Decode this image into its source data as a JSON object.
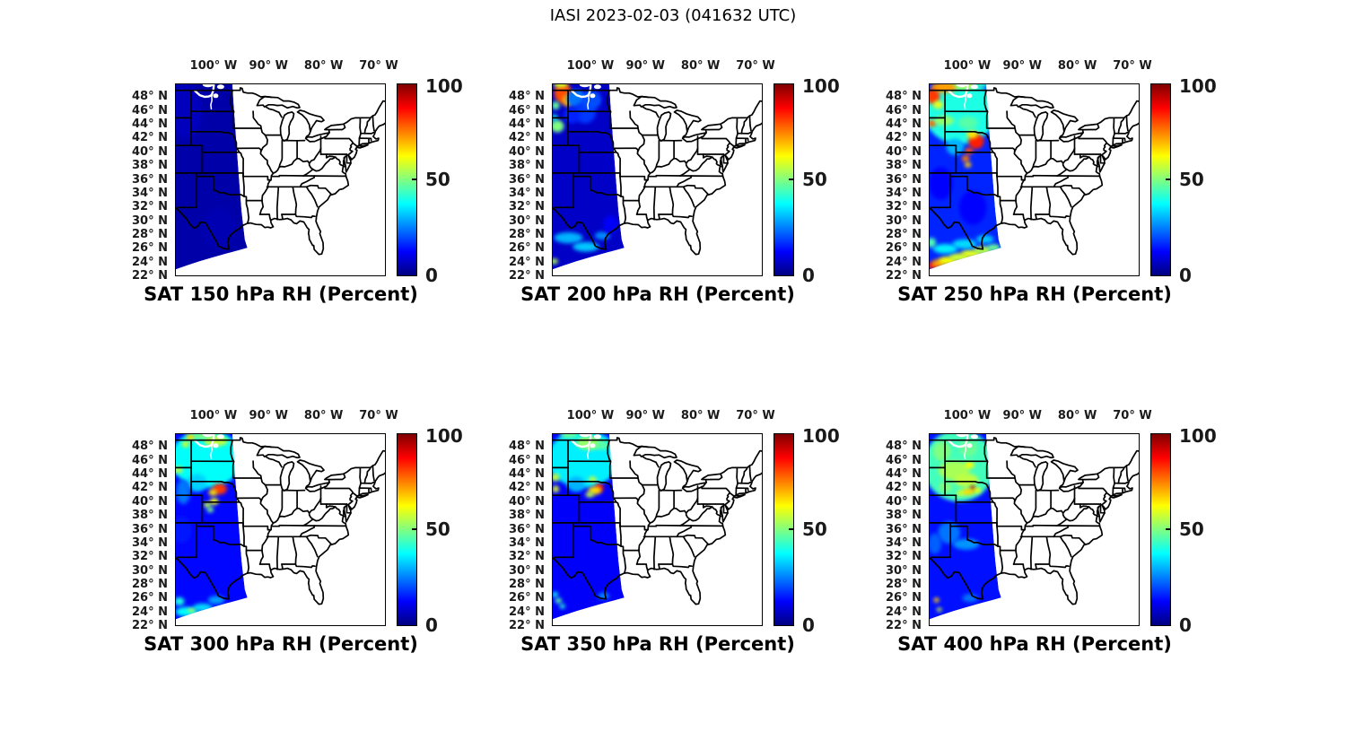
{
  "figure_title": "IASI 2023-02-03 (041632 UTC)",
  "axis": {
    "x_tick_labels": [
      "100° W",
      "90° W",
      "80° W",
      "70° W"
    ],
    "y_tick_labels": [
      "48° N",
      "46° N",
      "44° N",
      "42° N",
      "40° N",
      "38° N",
      "36° N",
      "34° N",
      "32° N",
      "30° N",
      "28° N",
      "26° N",
      "24° N",
      "22° N"
    ]
  },
  "colorbar": {
    "labels": [
      "100",
      "50",
      "0"
    ],
    "min": 0,
    "max": 100,
    "colormap": "jet",
    "gradient_stops": [
      "#000080",
      "#0000FF",
      "#00FFFF",
      "#80FF80",
      "#FFFF00",
      "#FF0000",
      "#800000"
    ]
  },
  "chart_data": {
    "type": "heatmap",
    "title": "IASI 2023-02-03 (041632 UTC)",
    "instrument": "IASI",
    "date": "2023-02-03",
    "time_utc": "041632",
    "variable": "Relative Humidity",
    "units": "Percent",
    "colormap": "jet",
    "colorbar_range": [
      0,
      100
    ],
    "colorbar_ticks": [
      0,
      50,
      100
    ],
    "map_extent": {
      "lon_west_deg_w": 107,
      "lon_east_deg_w": 68.7,
      "lat_south_deg_n": 22,
      "lat_north_deg_n": 50
    },
    "x_ticks_deg_w": [
      100,
      90,
      80,
      70
    ],
    "y_ticks_deg_n": [
      48,
      46,
      44,
      42,
      40,
      38,
      36,
      34,
      32,
      30,
      28,
      26,
      24,
      22
    ],
    "blob_format": [
      "lon_deg_w",
      "lat_deg_n",
      "rx_deg",
      "ry_deg",
      "rh_percent"
    ],
    "panels": [
      {
        "level_hpa": 150,
        "title": "SAT 150 hPa RH (Percent)",
        "base_rh": 4,
        "field_blobs": [
          [
            105,
            46,
            3,
            4,
            6
          ],
          [
            99,
            29,
            3,
            3,
            5
          ]
        ]
      },
      {
        "level_hpa": 200,
        "title": "SAT 200 hPa RH (Percent)",
        "base_rh": 7,
        "field_blobs": [
          [
            105,
            48.6,
            1.6,
            1.5,
            80
          ],
          [
            104.1,
            47.5,
            1.0,
            0.9,
            70
          ],
          [
            105.4,
            49.9,
            1.3,
            0.5,
            58
          ],
          [
            106.3,
            46.8,
            0.7,
            0.6,
            48
          ],
          [
            106,
            43.8,
            1.2,
            0.9,
            50
          ],
          [
            106.5,
            45,
            0.5,
            0.5,
            40
          ],
          [
            102.5,
            47.8,
            1.8,
            1.3,
            24
          ],
          [
            101,
            45.8,
            2,
            1.6,
            18
          ],
          [
            103.4,
            45.4,
            1.5,
            1.2,
            16
          ],
          [
            99.8,
            47.6,
            1.8,
            1.4,
            20
          ],
          [
            104,
            27.6,
            2.6,
            0.8,
            30
          ],
          [
            100.8,
            26.3,
            2.4,
            0.7,
            32
          ],
          [
            97.8,
            27.9,
            1.4,
            0.6,
            26
          ],
          [
            106.6,
            24.2,
            0.7,
            0.4,
            55
          ],
          [
            96.3,
            29.5,
            1.3,
            1.3,
            12
          ]
        ]
      },
      {
        "level_hpa": 250,
        "title": "SAT 250 hPa RH (Percent)",
        "base_rh": 16,
        "field_blobs": [
          [
            101.3,
            45.8,
            6.5,
            4.6,
            40
          ],
          [
            104.2,
            49.4,
            2.4,
            0.8,
            72
          ],
          [
            106.2,
            48.1,
            1.2,
            1.1,
            82
          ],
          [
            105.3,
            46.9,
            0.9,
            0.6,
            60
          ],
          [
            100.3,
            49.7,
            2.0,
            0.6,
            55
          ],
          [
            97.6,
            49.9,
            1.4,
            0.5,
            42
          ],
          [
            106.4,
            44.2,
            0.8,
            0.5,
            78
          ],
          [
            104.2,
            44.6,
            1.8,
            0.7,
            52
          ],
          [
            99.9,
            44.3,
            1.8,
            0.9,
            46
          ],
          [
            98.4,
            41.6,
            1.4,
            1.1,
            85
          ],
          [
            99.1,
            42.6,
            1.0,
            0.6,
            65
          ],
          [
            99.7,
            40.2,
            0.8,
            0.5,
            80
          ],
          [
            100.3,
            39.1,
            0.7,
            0.5,
            76
          ],
          [
            99.9,
            38.2,
            0.6,
            0.4,
            68
          ],
          [
            102.2,
            40.8,
            1.6,
            1.2,
            30
          ],
          [
            104.8,
            35.5,
            2.2,
            2.4,
            13
          ],
          [
            99,
            32,
            2.5,
            2.5,
            13
          ],
          [
            106.3,
            23.6,
            1.0,
            0.5,
            85
          ],
          [
            105.2,
            23.9,
            1.2,
            0.6,
            72
          ],
          [
            103.6,
            24.3,
            1.6,
            0.6,
            62
          ],
          [
            101.5,
            24.8,
            1.8,
            0.6,
            58
          ],
          [
            99.3,
            25.3,
            1.8,
            0.6,
            60
          ],
          [
            97.2,
            25.8,
            1.6,
            0.6,
            55
          ],
          [
            95.2,
            26.2,
            1.2,
            0.5,
            48
          ],
          [
            104,
            26,
            2.2,
            0.7,
            36
          ],
          [
            100.5,
            26.7,
            2.2,
            0.7,
            34
          ],
          [
            96.8,
            27.4,
            1.6,
            0.6,
            32
          ],
          [
            106.5,
            26.9,
            0.8,
            0.7,
            45
          ]
        ]
      },
      {
        "level_hpa": 300,
        "title": "SAT 300 hPa RH (Percent)",
        "base_rh": 13,
        "field_blobs": [
          [
            101.3,
            46.3,
            6.5,
            4.2,
            38
          ],
          [
            99.6,
            48.9,
            2.2,
            0.8,
            56
          ],
          [
            102.2,
            49.6,
            1.3,
            0.5,
            50
          ],
          [
            104.2,
            49.4,
            0.8,
            0.5,
            66
          ],
          [
            105.1,
            48.4,
            0.6,
            0.4,
            62
          ],
          [
            106.4,
            44.7,
            0.8,
            0.5,
            56
          ],
          [
            98.9,
            41.9,
            1.3,
            0.8,
            82
          ],
          [
            100.1,
            41.4,
            0.8,
            0.5,
            66
          ],
          [
            99.9,
            40.1,
            0.8,
            0.5,
            62
          ],
          [
            101.1,
            39.6,
            0.7,
            0.4,
            56
          ],
          [
            100.6,
            38.9,
            0.6,
            0.4,
            50
          ],
          [
            103,
            42.8,
            1.8,
            1.3,
            33
          ],
          [
            105.5,
            41.5,
            1.3,
            1.8,
            24
          ],
          [
            105.8,
            36,
            1.8,
            2,
            15
          ],
          [
            104.9,
            24.1,
            2.0,
            0.7,
            38
          ],
          [
            102,
            24.7,
            1.8,
            0.6,
            34
          ],
          [
            106.2,
            25.6,
            0.9,
            0.6,
            40
          ],
          [
            104,
            24.3,
            0.7,
            0.25,
            58
          ],
          [
            99.5,
            25.8,
            1.5,
            0.6,
            28
          ]
        ]
      },
      {
        "level_hpa": 350,
        "title": "SAT 350 hPa RH (Percent)",
        "base_rh": 12,
        "field_blobs": [
          [
            101.3,
            46.3,
            6.5,
            4.2,
            36
          ],
          [
            100.2,
            48.6,
            2.4,
            1.0,
            52
          ],
          [
            103.9,
            49.8,
            1.6,
            0.5,
            48
          ],
          [
            97.8,
            48.3,
            1.2,
            0.7,
            46
          ],
          [
            106.4,
            43.6,
            0.8,
            0.6,
            56
          ],
          [
            106.3,
            41.9,
            0.6,
            0.5,
            60
          ],
          [
            98.4,
            42.1,
            0.8,
            0.6,
            86
          ],
          [
            99.2,
            41.7,
            1.2,
            0.6,
            66
          ],
          [
            100.1,
            41.1,
            0.8,
            0.4,
            56
          ],
          [
            99.6,
            43.3,
            0.7,
            0.4,
            58
          ],
          [
            102.6,
            42.6,
            1.6,
            1.1,
            30
          ],
          [
            105.8,
            25.7,
            0.6,
            0.4,
            46
          ],
          [
            105.1,
            24.9,
            0.5,
            0.35,
            42
          ],
          [
            97.6,
            26.4,
            1.0,
            0.5,
            26
          ],
          [
            106.4,
            26.6,
            0.5,
            0.4,
            40
          ]
        ]
      },
      {
        "level_hpa": 400,
        "title": "SAT 400 hPa RH (Percent)",
        "base_rh": 14,
        "field_blobs": [
          [
            101.5,
            45.3,
            6.5,
            5.2,
            44
          ],
          [
            102.4,
            44.6,
            2.8,
            1.4,
            54
          ],
          [
            100.2,
            43.2,
            2.2,
            1.0,
            56
          ],
          [
            104.6,
            47.4,
            1.6,
            1.4,
            50
          ],
          [
            99.8,
            47.8,
            1.6,
            1.2,
            48
          ],
          [
            103.9,
            42.2,
            1.2,
            0.8,
            50
          ],
          [
            99.6,
            45.4,
            0.9,
            0.5,
            62
          ],
          [
            99.0,
            42.0,
            0.5,
            0.4,
            95
          ],
          [
            99.9,
            41.5,
            1.2,
            0.5,
            66
          ],
          [
            98.2,
            41.7,
            0.7,
            0.4,
            62
          ],
          [
            101.2,
            41.3,
            0.8,
            0.4,
            58
          ],
          [
            103.3,
            35.6,
            2.0,
            1.6,
            24
          ],
          [
            100.2,
            33.9,
            2.4,
            0.8,
            27
          ],
          [
            105.9,
            34,
            1.2,
            1.5,
            22
          ],
          [
            105.6,
            25.8,
            0.5,
            0.35,
            68
          ],
          [
            105.1,
            24.4,
            0.45,
            0.3,
            58
          ],
          [
            99.5,
            26.1,
            1.4,
            0.6,
            24
          ]
        ]
      }
    ]
  }
}
